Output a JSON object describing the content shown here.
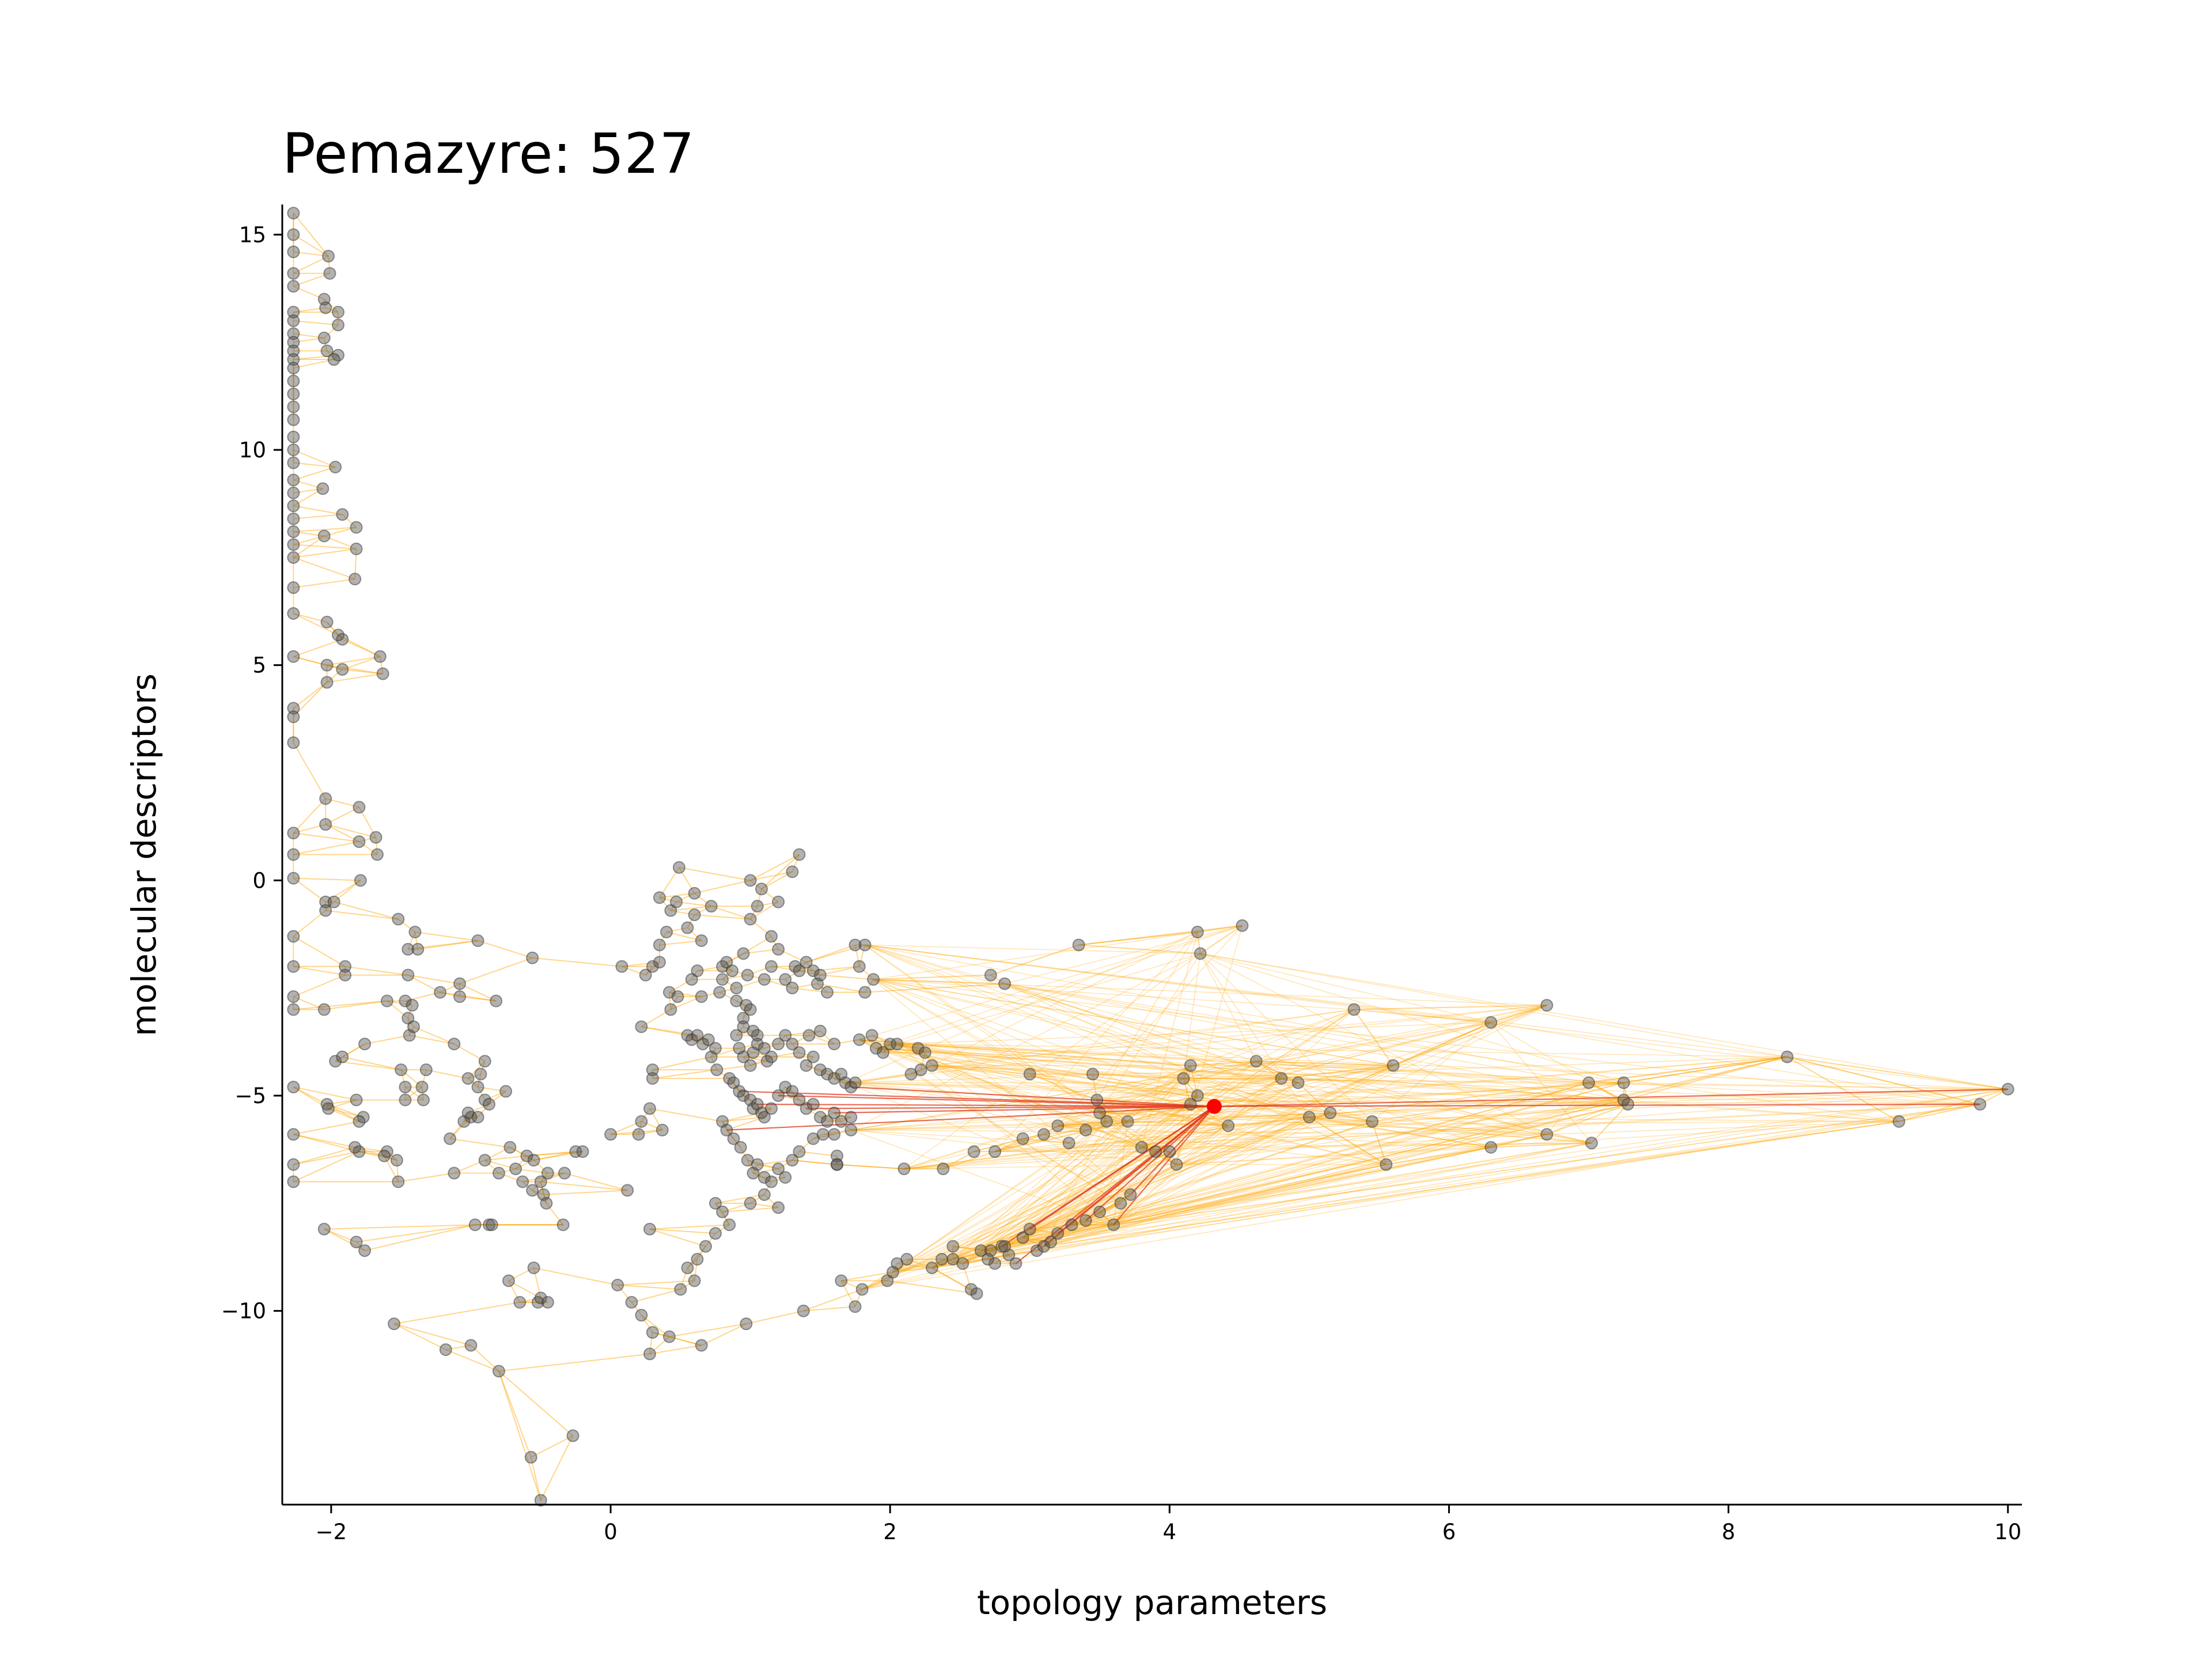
{
  "chart_data": {
    "type": "scatter",
    "title": "Pemazyre: 527",
    "xlabel": "topology parameters",
    "ylabel": "molecular descriptors",
    "xlim": [
      -2.35,
      10.1
    ],
    "ylim": [
      -14.5,
      15.7
    ],
    "xticks": [
      -2,
      0,
      2,
      4,
      6,
      8,
      10
    ],
    "yticks": [
      -10,
      -5,
      0,
      5,
      10,
      15
    ],
    "xtick_labels": [
      "−2",
      "0",
      "2",
      "4",
      "6",
      "8",
      "10"
    ],
    "ytick_labels": [
      "−10",
      "−5",
      "0",
      "5",
      "10",
      "15"
    ],
    "grid": false,
    "point_color": "#555555",
    "edge_color": "#ffa500",
    "highlight_edge_color": "#e03a1e",
    "highlight_color": "#ff0000",
    "highlight": {
      "x": 4.32,
      "y": -5.25
    },
    "points": [
      [
        -2.27,
        15.5
      ],
      [
        -2.27,
        15.0
      ],
      [
        -2.27,
        14.6
      ],
      [
        -2.27,
        14.1
      ],
      [
        -2.27,
        13.8
      ],
      [
        -2.27,
        13.2
      ],
      [
        -2.27,
        13.0
      ],
      [
        -2.27,
        12.7
      ],
      [
        -2.27,
        12.5
      ],
      [
        -2.27,
        12.3
      ],
      [
        -2.27,
        12.1
      ],
      [
        -2.27,
        11.9
      ],
      [
        -2.27,
        11.6
      ],
      [
        -2.27,
        11.3
      ],
      [
        -2.27,
        11.0
      ],
      [
        -2.27,
        10.7
      ],
      [
        -2.27,
        10.3
      ],
      [
        -2.27,
        10.0
      ],
      [
        -2.27,
        9.7
      ],
      [
        -2.27,
        9.3
      ],
      [
        -2.27,
        9.0
      ],
      [
        -2.27,
        8.7
      ],
      [
        -2.27,
        8.4
      ],
      [
        -2.27,
        8.1
      ],
      [
        -2.27,
        7.8
      ],
      [
        -2.27,
        7.5
      ],
      [
        -2.27,
        6.8
      ],
      [
        -2.27,
        6.2
      ],
      [
        -2.27,
        5.2
      ],
      [
        -2.27,
        4.0
      ],
      [
        -2.27,
        3.8
      ],
      [
        -2.27,
        3.2
      ],
      [
        -2.27,
        1.1
      ],
      [
        -2.27,
        0.6
      ],
      [
        -2.27,
        0.05
      ],
      [
        -2.27,
        -1.3
      ],
      [
        -2.27,
        -2.0
      ],
      [
        -2.27,
        -2.7
      ],
      [
        -2.27,
        -3.0
      ],
      [
        -2.27,
        -4.8
      ],
      [
        -2.27,
        -5.9
      ],
      [
        -2.27,
        -6.6
      ],
      [
        -2.27,
        -7.0
      ],
      [
        -2.02,
        14.5
      ],
      [
        -2.01,
        14.1
      ],
      [
        -2.05,
        13.5
      ],
      [
        -2.04,
        13.3
      ],
      [
        -1.95,
        13.2
      ],
      [
        -1.95,
        12.9
      ],
      [
        -2.05,
        12.6
      ],
      [
        -2.03,
        12.3
      ],
      [
        -1.95,
        12.2
      ],
      [
        -1.98,
        12.1
      ],
      [
        -1.97,
        9.6
      ],
      [
        -2.06,
        9.1
      ],
      [
        -1.92,
        8.5
      ],
      [
        -1.82,
        8.2
      ],
      [
        -1.82,
        7.7
      ],
      [
        -1.83,
        7.0
      ],
      [
        -2.05,
        8.0
      ],
      [
        -2.03,
        6.0
      ],
      [
        -1.95,
        5.7
      ],
      [
        -1.92,
        5.6
      ],
      [
        -2.03,
        5.0
      ],
      [
        -2.03,
        4.6
      ],
      [
        -1.92,
        4.9
      ],
      [
        -1.65,
        5.2
      ],
      [
        -1.63,
        4.8
      ],
      [
        -2.04,
        1.9
      ],
      [
        -2.04,
        1.3
      ],
      [
        -1.8,
        1.7
      ],
      [
        -1.8,
        0.9
      ],
      [
        -1.68,
        1.0
      ],
      [
        -1.67,
        0.6
      ],
      [
        -1.79,
        0.0
      ],
      [
        -2.04,
        -0.5
      ],
      [
        -2.04,
        -0.7
      ],
      [
        -1.98,
        -0.5
      ],
      [
        -1.9,
        -2.0
      ],
      [
        -1.9,
        -2.2
      ],
      [
        -2.05,
        -3.0
      ],
      [
        -1.97,
        -4.2
      ],
      [
        -1.92,
        -4.1
      ],
      [
        -2.03,
        -5.2
      ],
      [
        -2.02,
        -5.3
      ],
      [
        -1.82,
        -5.1
      ],
      [
        -1.77,
        -5.5
      ],
      [
        -1.8,
        -5.6
      ],
      [
        -1.83,
        -6.2
      ],
      [
        -1.8,
        -6.3
      ],
      [
        -2.05,
        -8.1
      ],
      [
        -1.82,
        -8.4
      ],
      [
        -1.76,
        -8.6
      ],
      [
        -1.76,
        -3.8
      ],
      [
        -1.6,
        -2.8
      ],
      [
        -1.52,
        -0.9
      ],
      [
        -1.45,
        -1.6
      ],
      [
        -1.4,
        -1.2
      ],
      [
        -1.38,
        -1.6
      ],
      [
        -1.45,
        -2.2
      ],
      [
        -1.47,
        -2.8
      ],
      [
        -1.42,
        -2.9
      ],
      [
        -1.45,
        -3.2
      ],
      [
        -1.44,
        -3.6
      ],
      [
        -1.41,
        -3.4
      ],
      [
        -1.5,
        -4.4
      ],
      [
        -1.47,
        -4.8
      ],
      [
        -1.47,
        -5.1
      ],
      [
        -1.35,
        -4.8
      ],
      [
        -1.32,
        -4.4
      ],
      [
        -1.34,
        -5.1
      ],
      [
        -1.22,
        -2.6
      ],
      [
        -1.12,
        -3.8
      ],
      [
        -1.08,
        -2.4
      ],
      [
        -1.08,
        -2.7
      ],
      [
        -1.02,
        -4.6
      ],
      [
        -1.0,
        -5.5
      ],
      [
        -1.05,
        -5.6
      ],
      [
        -1.02,
        -5.4
      ],
      [
        -0.95,
        -5.5
      ],
      [
        -0.9,
        -4.2
      ],
      [
        -0.93,
        -4.5
      ],
      [
        -0.95,
        -4.8
      ],
      [
        -0.9,
        -5.1
      ],
      [
        -0.87,
        -5.2
      ],
      [
        -0.95,
        -1.4
      ],
      [
        -0.82,
        -2.8
      ],
      [
        -0.75,
        -4.9
      ],
      [
        -1.6,
        -6.3
      ],
      [
        -1.62,
        -6.4
      ],
      [
        -1.53,
        -6.5
      ],
      [
        -1.52,
        -7.0
      ],
      [
        -1.15,
        -6.0
      ],
      [
        -1.12,
        -6.8
      ],
      [
        -0.9,
        -6.5
      ],
      [
        -0.97,
        -8.0
      ],
      [
        -0.87,
        -8.0
      ],
      [
        -0.85,
        -8.0
      ],
      [
        -0.8,
        -6.8
      ],
      [
        -0.72,
        -6.2
      ],
      [
        -0.68,
        -6.7
      ],
      [
        -0.6,
        -6.4
      ],
      [
        -0.55,
        -6.5
      ],
      [
        -0.63,
        -7.0
      ],
      [
        -0.56,
        -7.2
      ],
      [
        -0.5,
        -7.0
      ],
      [
        -0.48,
        -7.3
      ],
      [
        -0.46,
        -7.5
      ],
      [
        -0.45,
        -6.8
      ],
      [
        -0.33,
        -6.8
      ],
      [
        -0.25,
        -6.3
      ],
      [
        -0.34,
        -8.0
      ],
      [
        -0.55,
        -9.0
      ],
      [
        -0.52,
        -9.8
      ],
      [
        -0.5,
        -9.7
      ],
      [
        -0.45,
        -9.8
      ],
      [
        -0.65,
        -9.8
      ],
      [
        -0.73,
        -9.3
      ],
      [
        -0.8,
        -11.4
      ],
      [
        -1.0,
        -10.8
      ],
      [
        -1.18,
        -10.9
      ],
      [
        -1.55,
        -10.3
      ],
      [
        -0.56,
        -1.8
      ],
      [
        -0.27,
        -12.9
      ],
      [
        -0.57,
        -13.4
      ],
      [
        -0.5,
        -14.4
      ],
      [
        0.08,
        -2.0
      ],
      [
        0.25,
        -2.2
      ],
      [
        0.22,
        -3.4
      ],
      [
        0.3,
        -2.0
      ],
      [
        0.35,
        -1.9
      ],
      [
        0.35,
        -1.5
      ],
      [
        0.4,
        -1.2
      ],
      [
        0.42,
        -2.6
      ],
      [
        0.3,
        -4.4
      ],
      [
        0.3,
        -4.6
      ],
      [
        0.28,
        -5.3
      ],
      [
        0.22,
        -5.6
      ],
      [
        0.37,
        -5.8
      ],
      [
        0.43,
        -3.0
      ],
      [
        0.48,
        -2.7
      ],
      [
        0.43,
        -0.7
      ],
      [
        0.35,
        -0.4
      ],
      [
        0.49,
        0.3
      ],
      [
        0.47,
        -0.5
      ],
      [
        0.6,
        -0.3
      ],
      [
        0.55,
        -1.1
      ],
      [
        0.65,
        -1.4
      ],
      [
        0.62,
        -2.1
      ],
      [
        0.58,
        -2.3
      ],
      [
        0.65,
        -2.7
      ],
      [
        0.55,
        -3.6
      ],
      [
        0.58,
        -3.7
      ],
      [
        0.62,
        -3.6
      ],
      [
        0.66,
        -3.8
      ],
      [
        0.7,
        -3.7
      ],
      [
        0.75,
        -3.9
      ],
      [
        0.72,
        -4.1
      ],
      [
        0.76,
        -4.4
      ],
      [
        0.78,
        -2.6
      ],
      [
        0.8,
        -2.3
      ],
      [
        0.8,
        -2.0
      ],
      [
        0.83,
        -1.9
      ],
      [
        0.87,
        -2.1
      ],
      [
        0.9,
        -2.5
      ],
      [
        0.9,
        -2.8
      ],
      [
        0.95,
        -3.2
      ],
      [
        0.95,
        -3.4
      ],
      [
        0.97,
        -2.9
      ],
      [
        1.0,
        -3.0
      ],
      [
        1.02,
        -3.5
      ],
      [
        1.05,
        -3.6
      ],
      [
        0.98,
        -2.2
      ],
      [
        0.95,
        -1.7
      ],
      [
        1.0,
        -0.9
      ],
      [
        1.05,
        -0.6
      ],
      [
        1.08,
        -0.2
      ],
      [
        1.0,
        0.0
      ],
      [
        1.15,
        -1.3
      ],
      [
        1.2,
        -0.5
      ],
      [
        1.25,
        -2.3
      ],
      [
        1.3,
        -2.5
      ],
      [
        1.32,
        -2.0
      ],
      [
        1.35,
        -2.1
      ],
      [
        1.4,
        -1.9
      ],
      [
        1.45,
        -2.1
      ],
      [
        1.48,
        -2.4
      ],
      [
        1.5,
        -2.2
      ],
      [
        1.55,
        -2.6
      ],
      [
        1.35,
        0.6
      ],
      [
        1.3,
        0.2
      ],
      [
        1.2,
        -1.6
      ],
      [
        1.15,
        -2.0
      ],
      [
        1.1,
        -2.3
      ],
      [
        0.72,
        -0.6
      ],
      [
        0.6,
        -0.8
      ],
      [
        0.9,
        -3.6
      ],
      [
        0.92,
        -3.9
      ],
      [
        0.95,
        -4.1
      ],
      [
        1.0,
        -4.3
      ],
      [
        1.02,
        -4.0
      ],
      [
        1.05,
        -3.8
      ],
      [
        1.1,
        -3.9
      ],
      [
        1.12,
        -4.2
      ],
      [
        1.15,
        -4.1
      ],
      [
        1.2,
        -3.8
      ],
      [
        1.25,
        -3.6
      ],
      [
        1.3,
        -3.8
      ],
      [
        1.35,
        -4.0
      ],
      [
        1.4,
        -4.3
      ],
      [
        1.45,
        -4.1
      ],
      [
        1.5,
        -4.4
      ],
      [
        1.55,
        -4.5
      ],
      [
        1.6,
        -4.6
      ],
      [
        1.65,
        -4.5
      ],
      [
        1.68,
        -4.7
      ],
      [
        1.72,
        -4.8
      ],
      [
        1.75,
        -4.7
      ],
      [
        0.85,
        -4.6
      ],
      [
        0.88,
        -4.7
      ],
      [
        0.92,
        -4.9
      ],
      [
        0.95,
        -5.0
      ],
      [
        1.0,
        -5.1
      ],
      [
        1.02,
        -5.3
      ],
      [
        1.05,
        -5.2
      ],
      [
        1.08,
        -5.4
      ],
      [
        1.1,
        -5.5
      ],
      [
        1.15,
        -5.3
      ],
      [
        1.2,
        -5.0
      ],
      [
        1.25,
        -4.8
      ],
      [
        1.3,
        -4.9
      ],
      [
        1.35,
        -5.1
      ],
      [
        1.4,
        -5.3
      ],
      [
        1.45,
        -5.2
      ],
      [
        1.5,
        -5.5
      ],
      [
        1.55,
        -5.6
      ],
      [
        1.6,
        -5.4
      ],
      [
        1.65,
        -5.6
      ],
      [
        1.72,
        -5.5
      ],
      [
        0.8,
        -5.6
      ],
      [
        0.83,
        -5.8
      ],
      [
        0.88,
        -6.0
      ],
      [
        0.93,
        -6.2
      ],
      [
        0.98,
        -6.5
      ],
      [
        1.02,
        -6.8
      ],
      [
        1.05,
        -6.6
      ],
      [
        1.1,
        -6.9
      ],
      [
        1.15,
        -7.0
      ],
      [
        1.2,
        -6.7
      ],
      [
        1.25,
        -6.9
      ],
      [
        1.3,
        -6.5
      ],
      [
        1.35,
        -6.3
      ],
      [
        1.45,
        -6.0
      ],
      [
        1.52,
        -5.9
      ],
      [
        1.6,
        -5.9
      ],
      [
        1.62,
        -6.4
      ],
      [
        1.62,
        -6.6
      ],
      [
        1.72,
        -5.8
      ],
      [
        0.75,
        -7.5
      ],
      [
        0.8,
        -7.7
      ],
      [
        0.85,
        -8.0
      ],
      [
        0.75,
        -8.2
      ],
      [
        0.68,
        -8.5
      ],
      [
        0.62,
        -8.8
      ],
      [
        0.55,
        -9.0
      ],
      [
        0.6,
        -9.3
      ],
      [
        0.5,
        -9.5
      ],
      [
        1.0,
        -7.5
      ],
      [
        1.1,
        -7.3
      ],
      [
        1.2,
        -7.6
      ],
      [
        0.97,
        -10.3
      ],
      [
        1.38,
        -10.0
      ],
      [
        0.65,
        -10.8
      ],
      [
        0.42,
        -10.6
      ],
      [
        0.3,
        -10.5
      ],
      [
        0.28,
        -11.0
      ],
      [
        0.22,
        -10.1
      ],
      [
        0.15,
        -9.8
      ],
      [
        0.05,
        -9.4
      ],
      [
        0.12,
        -7.2
      ],
      [
        0.2,
        -5.9
      ],
      [
        0.28,
        -8.1
      ],
      [
        0.0,
        -5.9
      ],
      [
        -0.2,
        -6.3
      ],
      [
        1.82,
        -1.5
      ],
      [
        1.75,
        -1.5
      ],
      [
        1.78,
        -2.0
      ],
      [
        1.88,
        -2.3
      ],
      [
        1.82,
        -2.6
      ],
      [
        1.87,
        -3.6
      ],
      [
        1.9,
        -3.9
      ],
      [
        1.95,
        -4.0
      ],
      [
        2.0,
        -3.8
      ],
      [
        2.05,
        -3.8
      ],
      [
        2.2,
        -3.9
      ],
      [
        2.25,
        -4.0
      ],
      [
        2.3,
        -4.3
      ],
      [
        2.22,
        -4.4
      ],
      [
        2.15,
        -4.5
      ],
      [
        1.78,
        -3.7
      ],
      [
        1.6,
        -3.8
      ],
      [
        1.5,
        -3.5
      ],
      [
        1.42,
        -3.6
      ],
      [
        1.62,
        -6.6
      ],
      [
        1.65,
        -9.3
      ],
      [
        1.8,
        -9.5
      ],
      [
        1.75,
        -9.9
      ],
      [
        1.98,
        -9.3
      ],
      [
        2.02,
        -9.1
      ],
      [
        2.05,
        -8.9
      ],
      [
        2.12,
        -8.8
      ],
      [
        2.3,
        -9.0
      ],
      [
        2.37,
        -8.8
      ],
      [
        2.45,
        -8.5
      ],
      [
        2.52,
        -8.9
      ],
      [
        2.58,
        -9.5
      ],
      [
        2.62,
        -9.6
      ],
      [
        2.65,
        -8.6
      ],
      [
        2.72,
        -8.6
      ],
      [
        2.75,
        -8.9
      ],
      [
        2.8,
        -8.5
      ],
      [
        2.85,
        -8.7
      ],
      [
        2.9,
        -8.9
      ],
      [
        2.95,
        -8.3
      ],
      [
        3.0,
        -8.1
      ],
      [
        3.05,
        -8.6
      ],
      [
        3.1,
        -8.5
      ],
      [
        3.15,
        -8.4
      ],
      [
        3.2,
        -8.2
      ],
      [
        3.3,
        -8.0
      ],
      [
        3.4,
        -7.9
      ],
      [
        3.5,
        -7.7
      ],
      [
        3.6,
        -8.0
      ],
      [
        3.65,
        -7.5
      ],
      [
        3.72,
        -7.3
      ],
      [
        2.45,
        -8.8
      ],
      [
        2.7,
        -8.8
      ],
      [
        2.82,
        -8.5
      ],
      [
        2.1,
        -6.7
      ],
      [
        2.38,
        -6.7
      ],
      [
        2.6,
        -6.3
      ],
      [
        2.75,
        -6.3
      ],
      [
        2.95,
        -6.0
      ],
      [
        3.1,
        -5.9
      ],
      [
        3.2,
        -5.7
      ],
      [
        3.28,
        -6.1
      ],
      [
        3.4,
        -5.8
      ],
      [
        3.5,
        -5.4
      ],
      [
        3.55,
        -5.6
      ],
      [
        3.7,
        -5.6
      ],
      [
        3.8,
        -6.2
      ],
      [
        3.9,
        -6.3
      ],
      [
        4.0,
        -6.3
      ],
      [
        4.05,
        -6.6
      ],
      [
        4.15,
        -5.2
      ],
      [
        4.2,
        -5.0
      ],
      [
        4.1,
        -4.6
      ],
      [
        4.15,
        -4.3
      ],
      [
        3.45,
        -4.5
      ],
      [
        3.48,
        -5.1
      ],
      [
        3.0,
        -4.5
      ],
      [
        2.72,
        -2.2
      ],
      [
        2.82,
        -2.4
      ],
      [
        3.35,
        -1.5
      ],
      [
        4.2,
        -1.2
      ],
      [
        4.22,
        -1.7
      ],
      [
        4.52,
        -1.05
      ],
      [
        4.42,
        -5.7
      ],
      [
        4.62,
        -4.2
      ],
      [
        4.8,
        -4.6
      ],
      [
        4.92,
        -4.7
      ],
      [
        5.0,
        -5.5
      ],
      [
        5.15,
        -5.4
      ],
      [
        5.32,
        -3.0
      ],
      [
        5.45,
        -5.6
      ],
      [
        5.55,
        -6.6
      ],
      [
        5.6,
        -4.3
      ],
      [
        6.3,
        -3.3
      ],
      [
        6.3,
        -6.2
      ],
      [
        6.7,
        -2.9
      ],
      [
        6.7,
        -5.9
      ],
      [
        7.0,
        -4.7
      ],
      [
        7.02,
        -6.1
      ],
      [
        7.25,
        -4.7
      ],
      [
        7.25,
        -5.1
      ],
      [
        7.28,
        -5.2
      ],
      [
        8.42,
        -4.1
      ],
      [
        9.22,
        -5.6
      ],
      [
        9.8,
        -5.2
      ],
      [
        10.0,
        -4.85
      ]
    ]
  }
}
